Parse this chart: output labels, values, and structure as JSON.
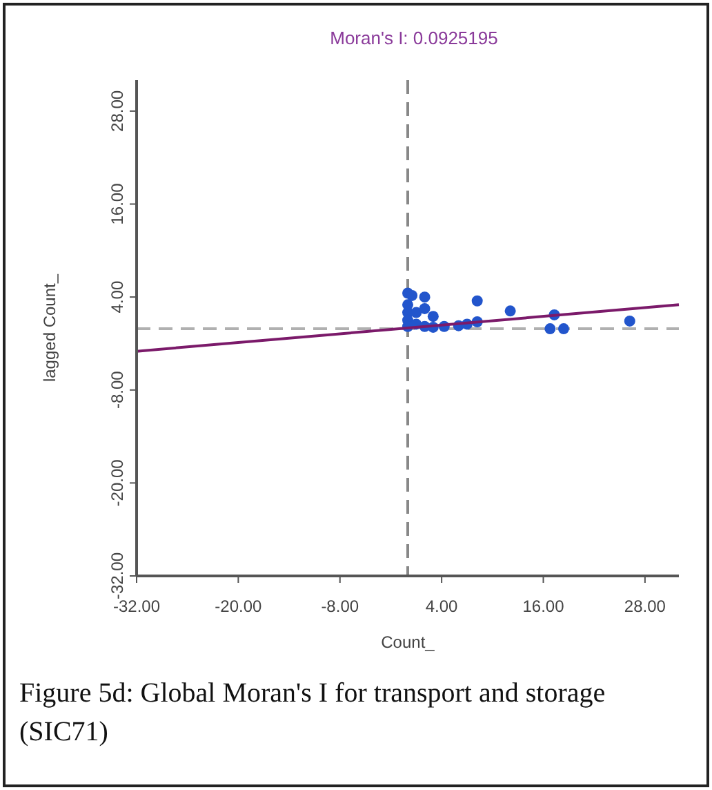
{
  "chart_data": {
    "type": "scatter",
    "title": "Moran's I: 0.0925195",
    "xlabel": "Count_",
    "ylabel": "lagged Count_",
    "annotations": [
      "Figure 5d: Global Moran's I for transport and storage (SIC71)"
    ],
    "xlim": [
      -32,
      32
    ],
    "ylim": [
      -32,
      32
    ],
    "xticks": [
      {
        "value": -32,
        "label": "-32.00"
      },
      {
        "value": -20,
        "label": "-20.00"
      },
      {
        "value": -8,
        "label": "-8.00"
      },
      {
        "value": 4,
        "label": "4.00"
      },
      {
        "value": 16,
        "label": "16.00"
      },
      {
        "value": 28,
        "label": "28.00"
      }
    ],
    "yticks": [
      {
        "value": -32,
        "label": "-32.00"
      },
      {
        "value": -20,
        "label": "-20.00"
      },
      {
        "value": -8,
        "label": "-8.00"
      },
      {
        "value": 4,
        "label": "4.00"
      },
      {
        "value": 16,
        "label": "16.00"
      },
      {
        "value": 28,
        "label": "28.00"
      }
    ],
    "grid": false,
    "ref_lines": [
      {
        "axis": "x",
        "value": 0,
        "color": "#888888",
        "line_style": "dashed"
      },
      {
        "axis": "y",
        "value": 0,
        "color": "#b0b0b0",
        "line_style": "dashed"
      }
    ],
    "series": [
      {
        "marker": "circle",
        "color": "#2255cc",
        "x": [
          0,
          0.5,
          2,
          0,
          0,
          0,
          0,
          1,
          4.3,
          1,
          2,
          3,
          2,
          3,
          6,
          7,
          8.2,
          8.2,
          12.1,
          17.3,
          16.8,
          18.4,
          26.2
        ],
        "values": [
          4.5,
          4.2,
          4,
          3,
          2,
          1,
          0.2,
          0.5,
          0.2,
          2,
          2.5,
          1.5,
          0.2,
          0.1,
          0.3,
          0.5,
          3.5,
          0.8,
          2.2,
          1.7,
          -0.1,
          -0.1,
          0.9
        ]
      },
      {
        "type": "line",
        "color": "#7b1a6a",
        "x": [
          -32,
          32
        ],
        "values": [
          -3,
          3
        ]
      }
    ]
  }
}
